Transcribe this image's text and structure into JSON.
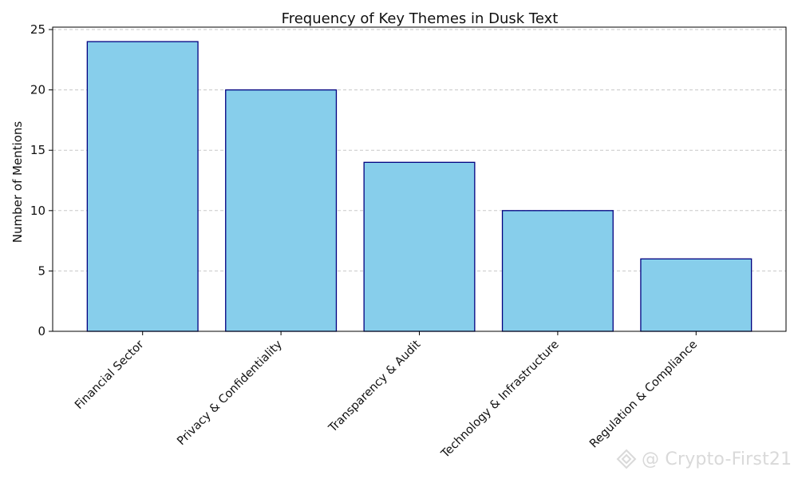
{
  "chart_data": {
    "type": "bar",
    "title": "Frequency of Key Themes in Dusk Text",
    "xlabel": "",
    "ylabel": "Number of Mentions",
    "categories": [
      "Financial Sector",
      "Privacy & Confidentiality",
      "Transparency & Audit",
      "Technology & Infrastructure",
      "Regulation & Compliance"
    ],
    "values": [
      24,
      20,
      14,
      10,
      6
    ],
    "ylim": [
      0,
      25.2
    ],
    "yticks": [
      0,
      5,
      10,
      15,
      20,
      25
    ],
    "grid": "y-dashed",
    "bar_color": "#87ceeb",
    "bar_edge_color": "#000080",
    "x_tick_rotation": "45 degrees"
  },
  "watermark": {
    "text": "@ Crypto-First21",
    "icon": "binance-square-logo"
  }
}
